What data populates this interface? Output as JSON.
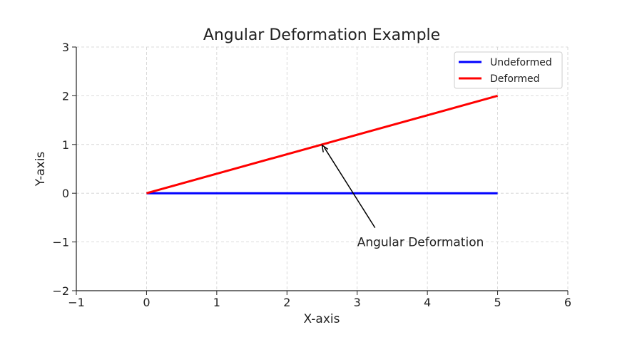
{
  "chart_data": {
    "type": "line",
    "title": "Angular Deformation Example",
    "xlabel": "X-axis",
    "ylabel": "Y-axis",
    "xlim": [
      -1,
      6
    ],
    "ylim": [
      -2,
      3
    ],
    "xticks": [
      -1,
      0,
      1,
      2,
      3,
      4,
      5,
      6
    ],
    "yticks": [
      -2,
      -1,
      0,
      1,
      2,
      3
    ],
    "xtick_labels": [
      "−1",
      "0",
      "1",
      "2",
      "3",
      "4",
      "5",
      "6"
    ],
    "ytick_labels": [
      "−2",
      "−1",
      "0",
      "1",
      "2",
      "3"
    ],
    "grid": true,
    "legend_position": "top-right",
    "series": [
      {
        "name": "Undeformed",
        "color": "#0000ff",
        "x": [
          0,
          5
        ],
        "y": [
          0,
          0
        ]
      },
      {
        "name": "Deformed",
        "color": "#ff0000",
        "x": [
          0,
          5
        ],
        "y": [
          0,
          2
        ]
      }
    ],
    "annotations": [
      {
        "text": "Angular Deformation",
        "xy": [
          2.5,
          1
        ],
        "xytext": [
          3,
          -1
        ],
        "arrow": true
      }
    ]
  }
}
